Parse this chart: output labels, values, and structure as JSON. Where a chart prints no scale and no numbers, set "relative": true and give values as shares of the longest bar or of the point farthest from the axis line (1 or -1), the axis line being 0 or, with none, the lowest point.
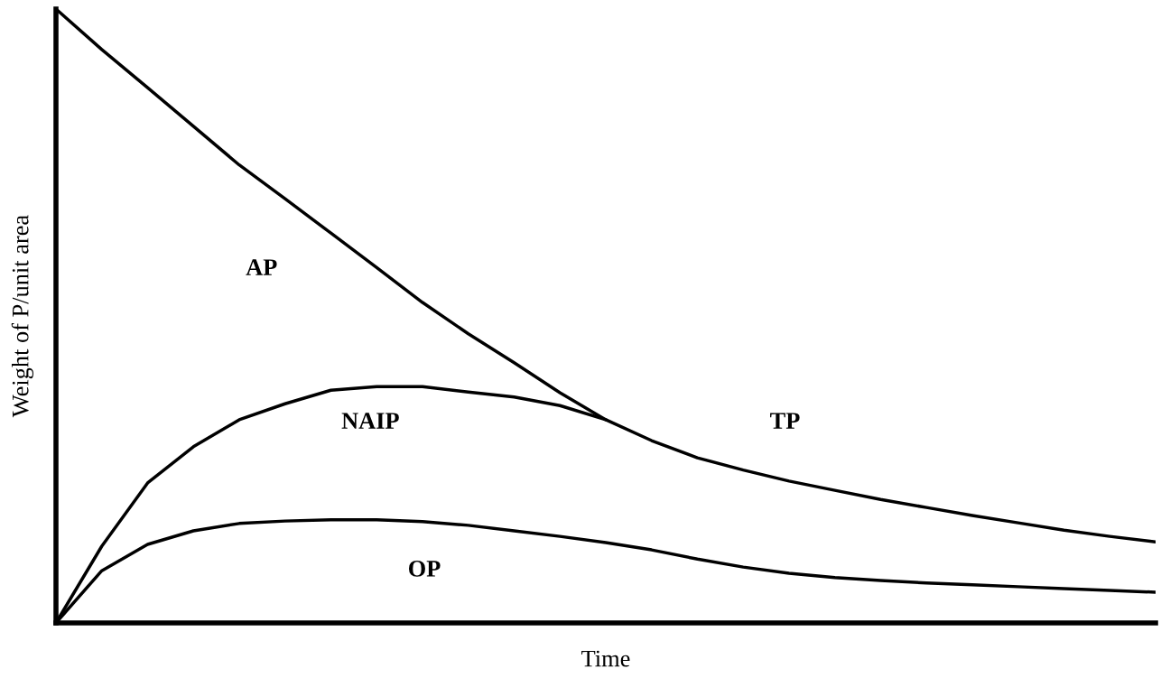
{
  "chart_data": {
    "type": "line",
    "relative": true,
    "xlabel": "Time",
    "ylabel": "Weight of P/unit area",
    "categories": [
      null,
      null,
      null,
      null,
      null,
      null,
      null,
      null,
      null,
      null,
      null,
      null,
      null,
      null,
      null,
      null,
      null,
      null,
      null,
      null,
      null,
      null,
      null,
      null,
      null
    ],
    "series": [
      {
        "color": "#000000",
        "values": [
          1,
          0.934,
          0.872,
          0.809,
          0.746,
          0.691,
          0.635,
          0.579,
          0.522,
          0.471,
          0.424,
          0.375,
          0.331,
          0.297,
          0.269,
          0.249,
          0.231,
          0.216,
          0.201,
          0.188,
          0.175,
          0.163,
          0.151,
          0.141,
          0.132
        ]
      },
      {
        "color": "#000000",
        "values": [
          0,
          0.125,
          0.228,
          0.287,
          0.331,
          0.357,
          0.379,
          0.385,
          0.385,
          0.376,
          0.368,
          0.354,
          0.331,
          null,
          null,
          null,
          null,
          null,
          null,
          null,
          null,
          null,
          null,
          null,
          null
        ]
      },
      {
        "color": "#000000",
        "values": [
          0,
          0.085,
          0.128,
          0.15,
          0.162,
          0.166,
          0.168,
          0.168,
          0.165,
          0.159,
          0.15,
          0.141,
          0.131,
          0.119,
          0.104,
          0.091,
          0.081,
          0.074,
          0.069,
          0.065,
          0.062,
          0.059,
          0.056,
          0.053,
          0.05
        ]
      }
    ],
    "annotations": [
      "AP",
      "NAIP",
      "TP",
      "OP"
    ]
  }
}
